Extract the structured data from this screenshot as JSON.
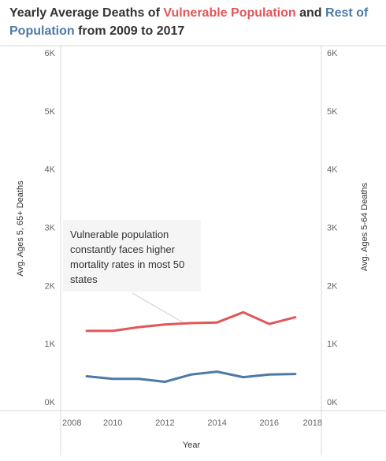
{
  "title": {
    "part1": "Yearly Average Deaths of ",
    "part2": "Vulnerable Population",
    "part3": " and ",
    "part4": "Rest of Population",
    "part5": " from 2009 to 2017"
  },
  "annotation": "Vulnerable population constantly faces higher mortality rates in most 50 states",
  "colors": {
    "vulnerable": "#e15759",
    "rest": "#4e79a7",
    "text": "#333333",
    "grid": "#d9d9d9"
  },
  "chart_data": {
    "type": "line",
    "xlabel": "Year",
    "ylabel_left": "Avg. Ages 5, 65+ Deaths",
    "ylabel_right": "Avg. Ages 5-64 Deaths",
    "xlim": [
      2008,
      2018
    ],
    "ylim": [
      0,
      6000
    ],
    "x_ticks": [
      "2008",
      "2010",
      "2012",
      "2014",
      "2016",
      "2018"
    ],
    "y_ticks": [
      "0K",
      "1K",
      "2K",
      "3K",
      "4K",
      "5K",
      "6K"
    ],
    "x": [
      2009,
      2010,
      2011,
      2012,
      2013,
      2014,
      2015,
      2016,
      2017
    ],
    "series": [
      {
        "values": [
          1220,
          1220,
          1285,
          1330,
          1355,
          1365,
          1540,
          1340,
          1455
        ]
      },
      {
        "values": [
          440,
          395,
          395,
          345,
          470,
          520,
          425,
          470,
          480
        ]
      }
    ],
    "legend": "none",
    "grid": false
  }
}
